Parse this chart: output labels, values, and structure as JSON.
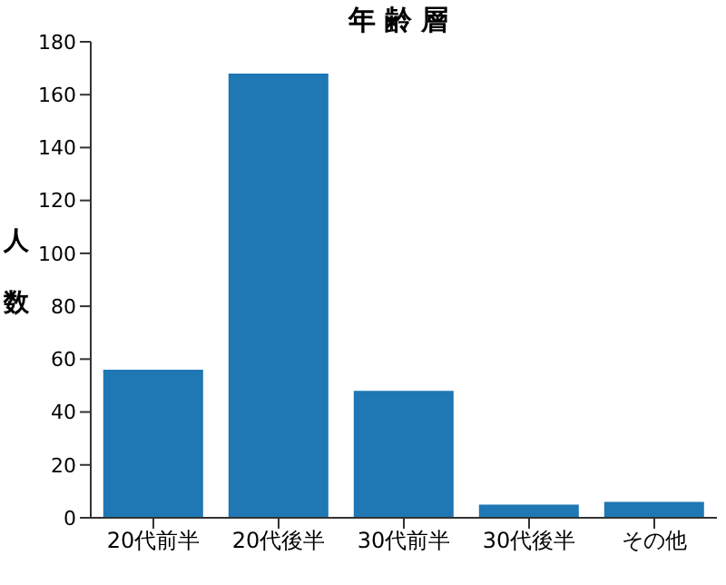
{
  "chart_data": {
    "type": "bar",
    "title": "年 齢 層",
    "ylabel": "人数",
    "categories": [
      "20代前半",
      "20代後半",
      "30代前半",
      "30代後半",
      "その他"
    ],
    "values": [
      56,
      168,
      48,
      5,
      6
    ],
    "color": "#1f77b4",
    "ylim": [
      0,
      180
    ],
    "yticks": [
      0,
      20,
      40,
      60,
      80,
      100,
      120,
      140,
      160,
      180
    ],
    "grid": false
  }
}
